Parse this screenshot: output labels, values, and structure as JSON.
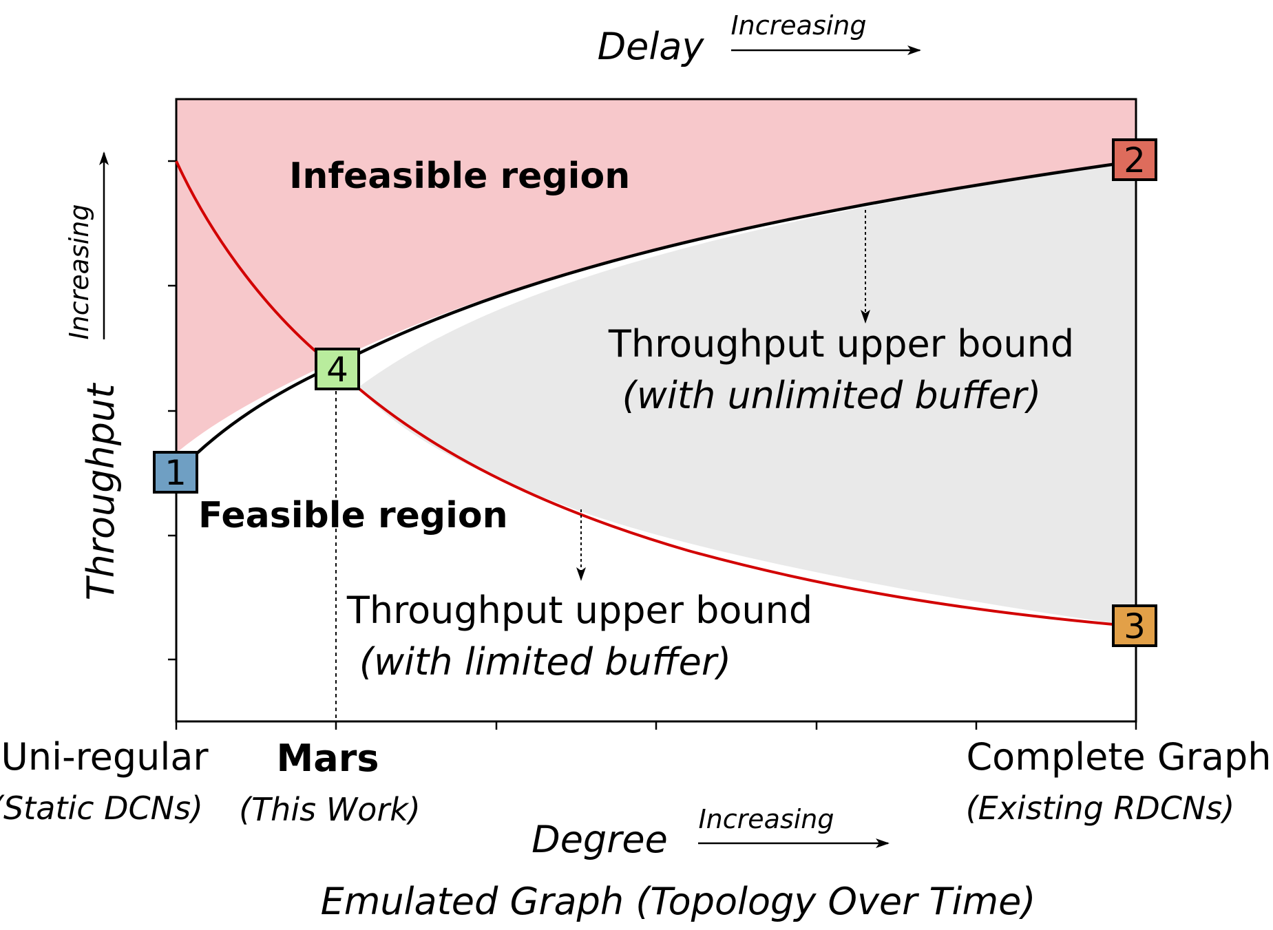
{
  "top_axis": {
    "label": "Delay",
    "direction": "Increasing"
  },
  "left_axis": {
    "label": "Throughput",
    "direction": "Increasing"
  },
  "bottom_axis": {
    "label": "Degree",
    "direction": "Increasing",
    "caption": "Emulated Graph (Topology Over Time)",
    "left_label": "Uni-regular",
    "left_sub": "(Static DCNs)",
    "mars_label": "Mars",
    "mars_sub": "(This Work)",
    "right_label": "Complete Graph",
    "right_sub": "(Existing RDCNs)"
  },
  "regions": {
    "infeasible": "Infeasible region",
    "feasible": "Feasible region"
  },
  "annotations": {
    "unlimited_title": "Throughput upper bound",
    "unlimited_sub": "(with unlimited buffer)",
    "limited_title": "Throughput upper bound",
    "limited_sub": "(with limited buffer)"
  },
  "markers": [
    {
      "label": "1",
      "color": "#6f9fc3"
    },
    {
      "label": "2",
      "color": "#de6c5c"
    },
    {
      "label": "3",
      "color": "#e2a048"
    },
    {
      "label": "4",
      "color": "#b9ec9d"
    }
  ],
  "colors": {
    "infeasible_fill": "#f7c8cb",
    "gap_fill": "#e9e9e9",
    "unlimited_curve": "#000000",
    "limited_curve": "#d20000"
  }
}
